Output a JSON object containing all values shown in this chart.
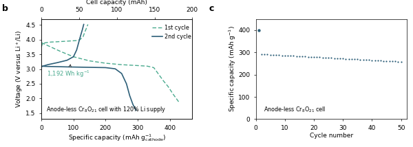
{
  "panel_b": {
    "label": "b",
    "xlabel": "Specific capacity (mAh $\\mathregular{g_{cathode}^{-1}}$)",
    "ylabel": "Voltage (V versus Li$^+$/Li)",
    "xlabel2": "Cell capacity (mAh)",
    "xlim": [
      0,
      470
    ],
    "ylim": [
      1.3,
      4.7
    ],
    "xlim2": [
      0,
      200
    ],
    "xticks": [
      0,
      100,
      200,
      300,
      400
    ],
    "yticks": [
      1.5,
      2.0,
      2.5,
      3.0,
      3.5,
      4.0,
      4.5
    ],
    "xticks2": [
      0,
      50,
      100,
      150,
      200
    ],
    "legend_labels": [
      "1st cycle",
      "2nd cycle"
    ],
    "annotation": "1,192 Wh kg$^{-1}$",
    "bottom_label": "Anode-less Cr$_8$O$_{21}$ cell with 120% Li supply",
    "color_1st": "#4aaa8e",
    "color_2nd": "#2d5f78"
  },
  "panel_c": {
    "label": "c",
    "xlabel": "Cycle number",
    "ylabel": "Specific capacity (mAh g$^{-1}$)",
    "xlim": [
      0,
      52
    ],
    "ylim": [
      0,
      450
    ],
    "xticks": [
      0,
      10,
      20,
      30,
      40,
      50
    ],
    "yticks": [
      0,
      100,
      200,
      300,
      400
    ],
    "bottom_label": "Anode-less Cr$_8$O$_{21}$ cell",
    "color": "#2d5f78",
    "first_cycle_val": 400,
    "cycle_start": 2,
    "cycle_end": 50,
    "cap_start": 292,
    "cap_end": 258
  }
}
